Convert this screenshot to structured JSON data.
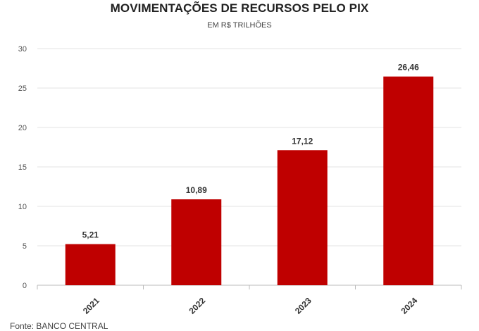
{
  "chart_data": {
    "type": "bar",
    "title": "MOVIMENTAÇÕES DE RECURSOS PELO PIX",
    "subtitle": "EM R$ TRILHÕES",
    "categories": [
      "2021",
      "2022",
      "2023",
      "2024"
    ],
    "values": [
      5.21,
      10.89,
      17.12,
      26.46
    ],
    "value_labels": [
      "5,21",
      "10,89",
      "17,12",
      "26,46"
    ],
    "ylim": [
      0,
      30
    ],
    "yticks": [
      0,
      5,
      10,
      15,
      20,
      25,
      30
    ],
    "grid": true,
    "bar_color": "#bf0000",
    "xlabel": "",
    "ylabel": ""
  },
  "source": "Fonte: BANCO CENTRAL"
}
